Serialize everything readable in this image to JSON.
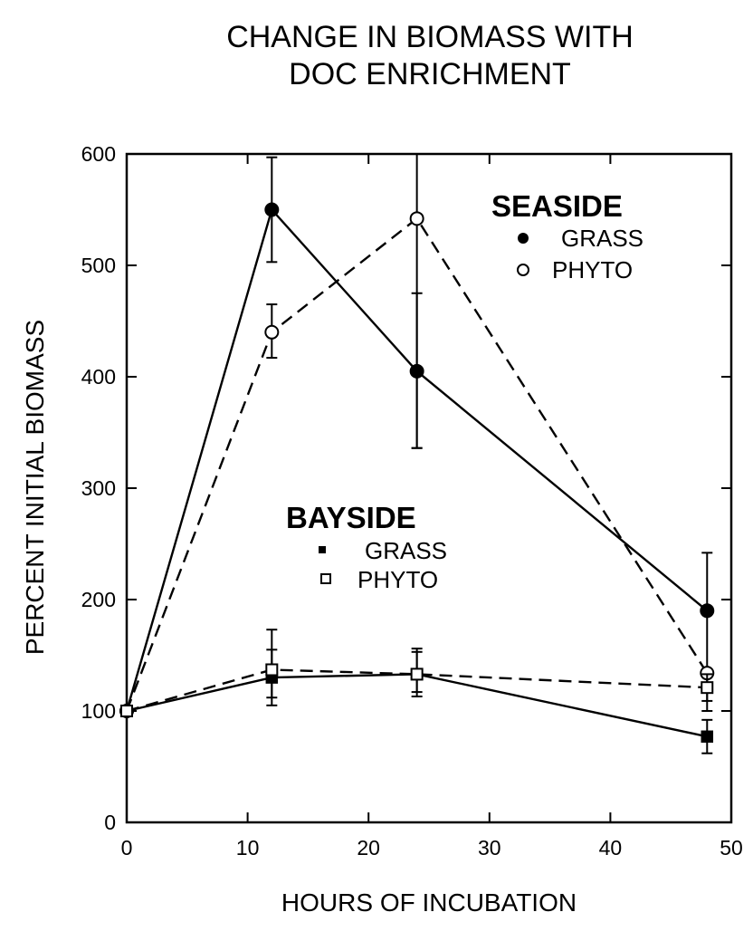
{
  "chart_data": {
    "type": "line",
    "title": "CHANGE IN BIOMASS WITH\nDOC ENRICHMENT",
    "xlabel": "HOURS OF INCUBATION",
    "ylabel": "PERCENT INITIAL BIOMASS",
    "xlim": [
      0,
      50
    ],
    "ylim": [
      0,
      600
    ],
    "xticks": [
      0,
      10,
      20,
      30,
      40,
      50
    ],
    "yticks": [
      0,
      100,
      200,
      300,
      400,
      500,
      600
    ],
    "grid": false,
    "legend_groups": [
      {
        "heading": "SEASIDE",
        "entries": [
          {
            "label": "GRASS",
            "marker": "filled-circle"
          },
          {
            "label": "PHYTO",
            "marker": "open-circle"
          }
        ]
      },
      {
        "heading": "BAYSIDE",
        "entries": [
          {
            "label": "GRASS",
            "marker": "filled-square"
          },
          {
            "label": "PHYTO",
            "marker": "open-square"
          }
        ]
      }
    ],
    "series": [
      {
        "group": "SEASIDE",
        "legend_label": "GRASS",
        "marker": "filled-circle",
        "line": "solid",
        "x": [
          0,
          12,
          24,
          48
        ],
        "y": [
          100,
          550,
          405,
          190
        ],
        "err_low": [
          null,
          503,
          336,
          100
        ],
        "err_high": [
          null,
          597,
          475,
          242
        ]
      },
      {
        "group": "SEASIDE",
        "legend_label": "PHYTO",
        "marker": "open-circle",
        "line": "dashed",
        "x": [
          0,
          12,
          24,
          48
        ],
        "y": [
          100,
          440,
          542,
          134
        ],
        "err_low": [
          null,
          417,
          336,
          null
        ],
        "err_high": [
          null,
          465,
          600,
          null
        ]
      },
      {
        "group": "BAYSIDE",
        "legend_label": "GRASS",
        "marker": "filled-square",
        "line": "solid",
        "x": [
          0,
          12,
          24,
          48
        ],
        "y": [
          100,
          130,
          133,
          77
        ],
        "err_low": [
          null,
          105,
          113,
          62
        ],
        "err_high": [
          null,
          155,
          156,
          92
        ]
      },
      {
        "group": "BAYSIDE",
        "legend_label": "PHYTO",
        "marker": "open-square",
        "line": "dashed",
        "x": [
          0,
          12,
          24,
          48
        ],
        "y": [
          100,
          137,
          133,
          121
        ],
        "err_low": [
          null,
          112,
          117,
          109
        ],
        "err_high": [
          null,
          173,
          153,
          133
        ]
      }
    ]
  }
}
